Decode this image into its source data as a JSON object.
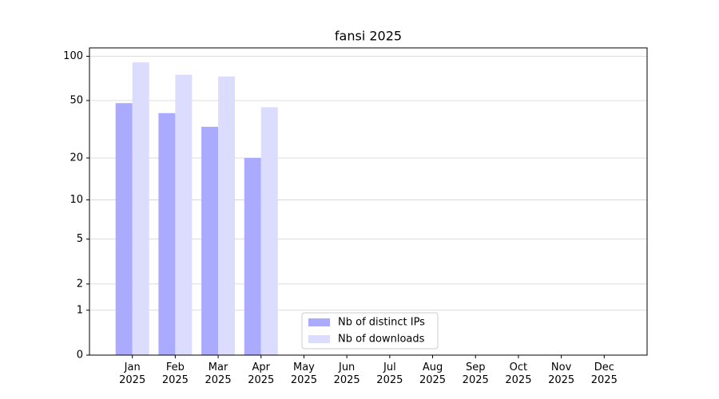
{
  "chart_data": {
    "type": "bar",
    "title": "fansi 2025",
    "scale": "log1p",
    "categories": [
      "Jan\n2025",
      "Feb\n2025",
      "Mar\n2025",
      "Apr\n2025",
      "May\n2025",
      "Jun\n2025",
      "Jul\n2025",
      "Aug\n2025",
      "Sep\n2025",
      "Oct\n2025",
      "Nov\n2025",
      "Dec\n2025"
    ],
    "series": [
      {
        "name": "Nb of distinct IPs",
        "color": "#aaaaff",
        "values": [
          48,
          41,
          33,
          20,
          null,
          null,
          null,
          null,
          null,
          null,
          null,
          null
        ]
      },
      {
        "name": "Nb of downloads",
        "color": "#dcdcff",
        "values": [
          91,
          75,
          73,
          45,
          null,
          null,
          null,
          null,
          null,
          null,
          null,
          null
        ]
      }
    ],
    "ylim": [
      0,
      114
    ],
    "yticks": [
      0,
      1,
      2,
      5,
      10,
      20,
      50,
      100
    ],
    "grid": true,
    "legend": "lower center"
  }
}
